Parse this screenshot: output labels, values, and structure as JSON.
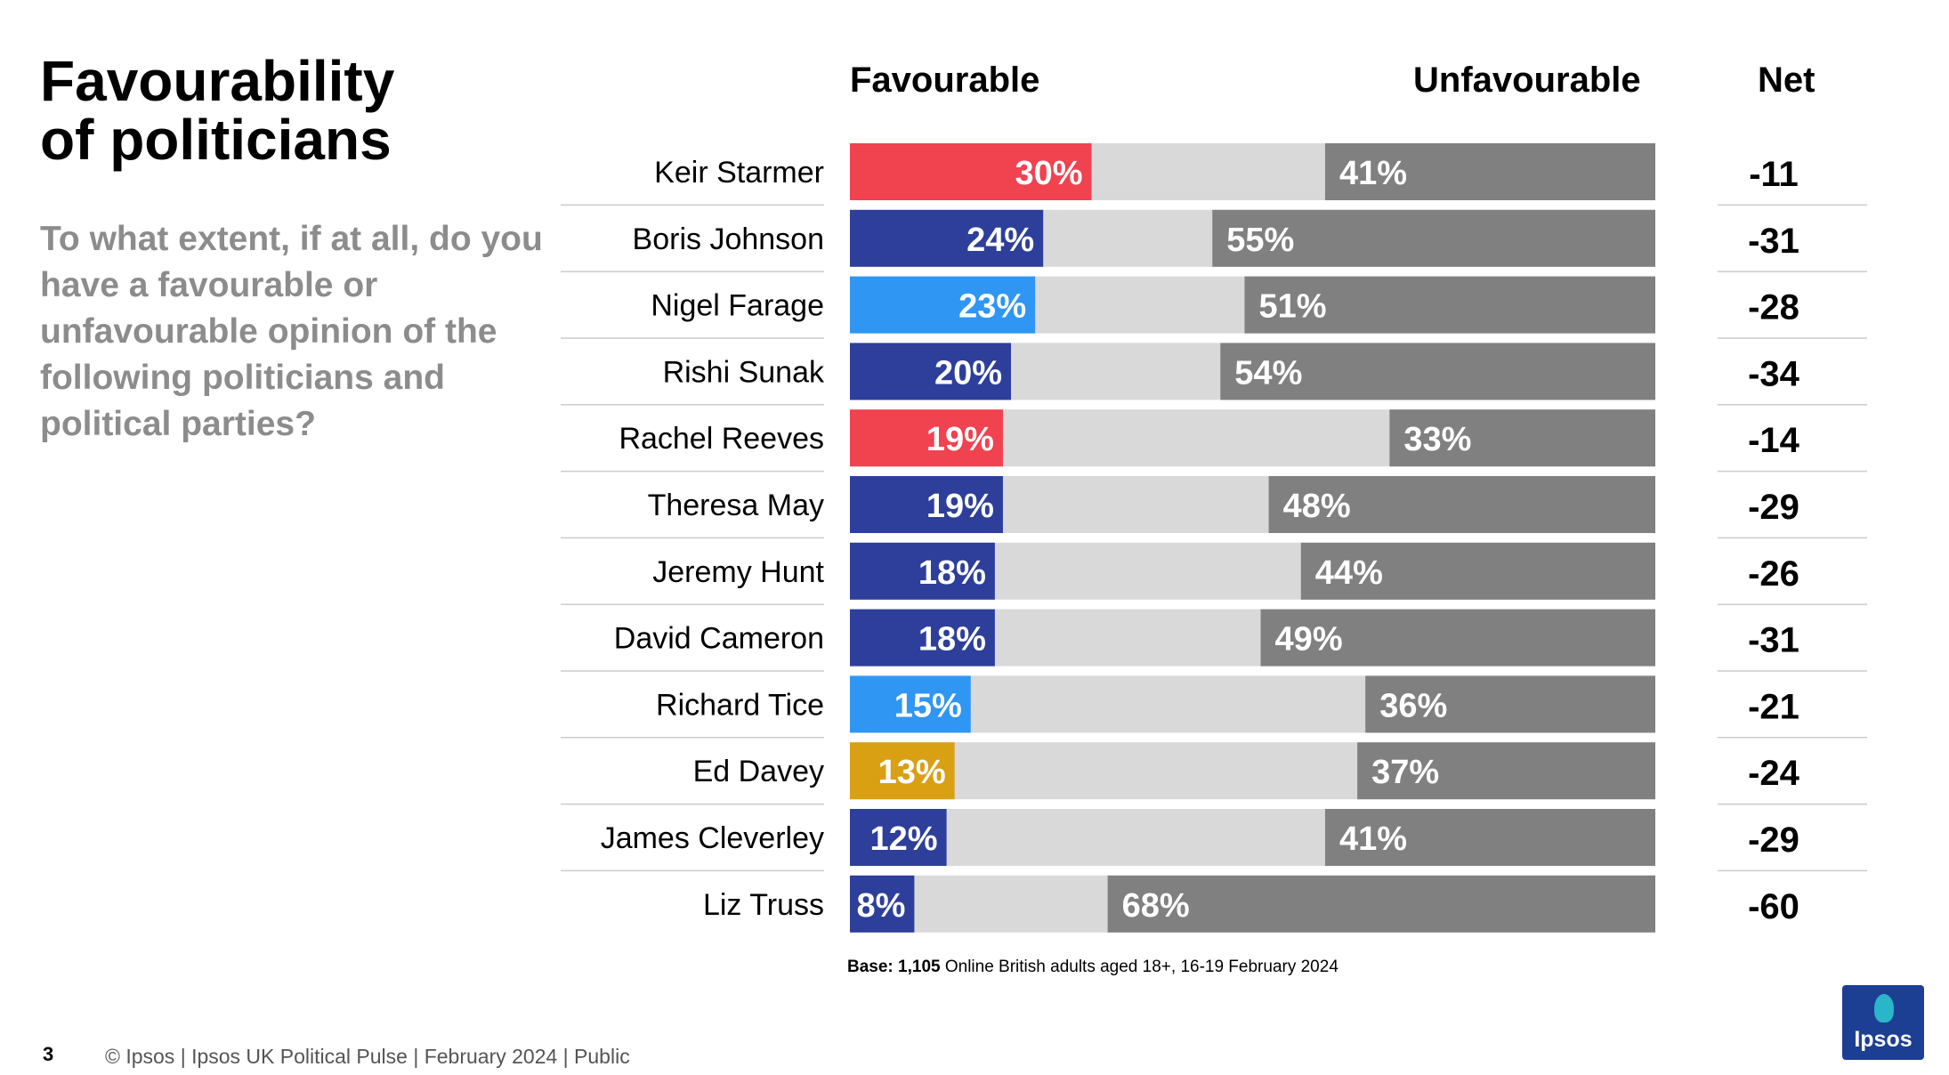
{
  "slide": {
    "title_line1": "Favourability",
    "title_line2": "of politicians",
    "question": "To what extent, if at all, do you have a favourable or unfavourable opinion of the following politicians and political parties?",
    "base_bold": "Base: 1,105",
    "base_rest": " Online British adults aged 18+,  16-19 February 2024",
    "page_number": "3",
    "footer": "© Ipsos  |  Ipsos UK Political Pulse | February 2024  |  Public",
    "logo_text": "Ipsos"
  },
  "colors": {
    "labour_red": "#f0424f",
    "conservative_navy": "#2d3f9a",
    "reform_blue": "#2f96f3",
    "libdem_gold": "#d9a014",
    "neutral_light_grey": "#d9d9d9",
    "unfavourable_grey": "#808080"
  },
  "chart_data": {
    "type": "bar",
    "orientation": "horizontal-diverging-stacked",
    "headers": {
      "favourable": "Favourable",
      "unfavourable": "Unfavourable",
      "net": "Net"
    },
    "categories": [
      "Keir Starmer",
      "Boris Johnson",
      "Nigel Farage",
      "Rishi Sunak",
      "Rachel Reeves",
      "Theresa May",
      "Jeremy Hunt",
      "David Cameron",
      "Richard Tice",
      "Ed Davey",
      "James Cleverley",
      "Liz Truss"
    ],
    "series": [
      {
        "name": "Favourable",
        "values": [
          30,
          24,
          23,
          20,
          19,
          19,
          18,
          18,
          15,
          13,
          12,
          8
        ],
        "labels": [
          "30%",
          "24%",
          "23%",
          "20%",
          "19%",
          "19%",
          "18%",
          "18%",
          "15%",
          "13%",
          "12%",
          "8%"
        ]
      },
      {
        "name": "Unfavourable",
        "values": [
          41,
          55,
          51,
          54,
          33,
          48,
          44,
          49,
          36,
          37,
          41,
          68
        ],
        "labels": [
          "41%",
          "55%",
          "51%",
          "54%",
          "33%",
          "48%",
          "44%",
          "49%",
          "36%",
          "37%",
          "41%",
          "68%"
        ]
      }
    ],
    "net": [
      "-11",
      "-31",
      "-28",
      "-34",
      "-14",
      "-29",
      "-26",
      "-31",
      "-21",
      "-24",
      "-29",
      "-60"
    ],
    "bar_colors": [
      "labour_red",
      "conservative_navy",
      "reform_blue",
      "conservative_navy",
      "labour_red",
      "conservative_navy",
      "conservative_navy",
      "conservative_navy",
      "reform_blue",
      "libdem_gold",
      "conservative_navy",
      "conservative_navy"
    ],
    "xlim": [
      0,
      100
    ]
  }
}
